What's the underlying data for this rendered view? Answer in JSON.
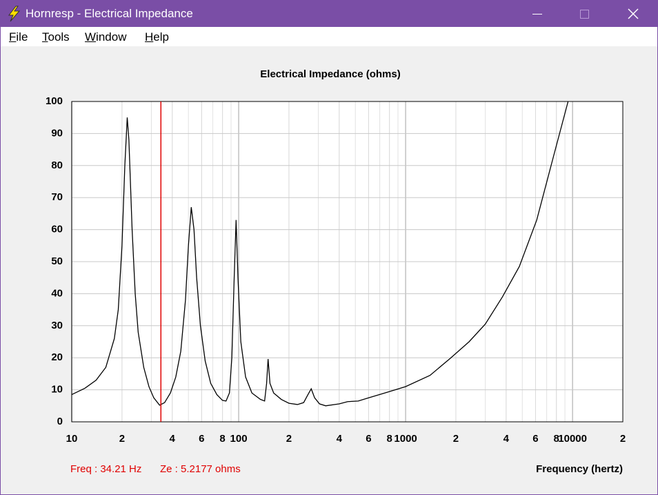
{
  "window": {
    "title": "Hornresp - Electrical Impedance",
    "menu": [
      "File",
      "Tools",
      "Window",
      "Help"
    ]
  },
  "chart_data": {
    "type": "line",
    "title": "Electrical Impedance (ohms)",
    "xlabel": "Frequency (hertz)",
    "xscale": "log",
    "grid": true,
    "color": "#000000",
    "xlim": [
      10,
      20000
    ],
    "ylim": [
      0,
      100
    ],
    "xticks": [
      10,
      {
        "value": 20,
        "label": "2"
      },
      {
        "value": 40,
        "label": "4"
      },
      {
        "value": 60,
        "label": "6"
      },
      {
        "value": 80,
        "label": "8"
      },
      100,
      {
        "value": 200,
        "label": "2"
      },
      {
        "value": 400,
        "label": "4"
      },
      {
        "value": 600,
        "label": "6"
      },
      {
        "value": 800,
        "label": "8"
      },
      1000,
      {
        "value": 2000,
        "label": "2"
      },
      {
        "value": 4000,
        "label": "4"
      },
      {
        "value": 6000,
        "label": "6"
      },
      {
        "value": 8000,
        "label": "8"
      },
      10000,
      {
        "value": 20000,
        "label": "2"
      }
    ],
    "yticks": [
      0,
      10,
      20,
      30,
      40,
      50,
      60,
      70,
      80,
      90,
      100
    ],
    "x": [
      10,
      12,
      14,
      16,
      18,
      19,
      20,
      20.8,
      21.5,
      22,
      23,
      24,
      25,
      27,
      29,
      31,
      33.6,
      36,
      39,
      42,
      45,
      48,
      50,
      52,
      54,
      56,
      59,
      63,
      68,
      74,
      80,
      84,
      88,
      91,
      94,
      96.5,
      99,
      103,
      110,
      120,
      135,
      143,
      147,
      150,
      154,
      162,
      180,
      200,
      225,
      245,
      260,
      272,
      285,
      305,
      332,
      400,
      450,
      520,
      600,
      750,
      1000,
      1400,
      1850,
      2400,
      3000,
      3800,
      4800,
      6100,
      7700,
      9400
    ],
    "values": [
      8.5,
      10.5,
      13,
      17,
      26,
      35,
      55,
      80,
      95,
      88,
      60,
      40,
      28,
      17,
      11,
      7.5,
      5.2,
      6,
      9,
      14,
      22,
      38,
      55,
      67,
      60,
      45,
      30,
      19,
      12,
      8.5,
      6.7,
      6.5,
      9,
      20,
      45,
      63,
      45,
      25,
      14,
      9,
      7,
      6.5,
      12,
      19.6,
      12,
      9,
      7,
      5.8,
      5.4,
      6,
      8.5,
      10.3,
      7.5,
      5.6,
      5,
      5.6,
      6.3,
      6.5,
      7.5,
      9,
      11,
      14.5,
      19.8,
      25,
      30.5,
      39,
      48.5,
      63,
      83,
      100
    ],
    "cursor": {
      "x": 34.21,
      "color": "#e00000",
      "freq_label": "Freq : 34.21 Hz",
      "ze_label": "Ze : 5.2177 ohms"
    }
  }
}
